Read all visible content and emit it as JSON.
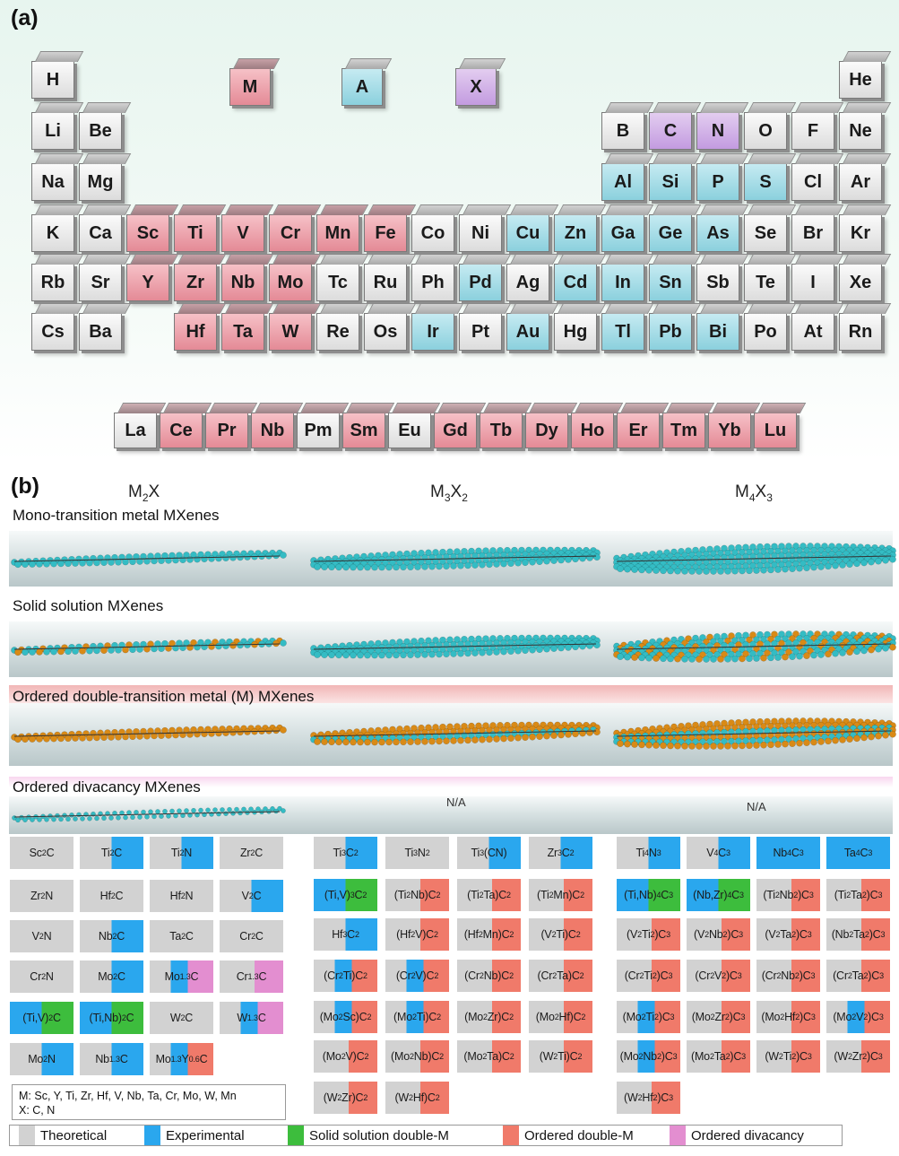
{
  "panel_a": {
    "label": "(a)",
    "legend_tiles": [
      {
        "symbol": "M",
        "role": "m"
      },
      {
        "symbol": "A",
        "role": "a"
      },
      {
        "symbol": "X",
        "role": "x"
      }
    ],
    "rows": [
      [
        {
          "s": "H",
          "r": "none"
        },
        {
          "s": "He",
          "r": "none"
        }
      ],
      [
        {
          "s": "Li",
          "r": "none"
        },
        {
          "s": "Be",
          "r": "none"
        },
        {
          "s": "B",
          "r": "none"
        },
        {
          "s": "C",
          "r": "x"
        },
        {
          "s": "N",
          "r": "x"
        },
        {
          "s": "O",
          "r": "none"
        },
        {
          "s": "F",
          "r": "none"
        },
        {
          "s": "Ne",
          "r": "none"
        }
      ],
      [
        {
          "s": "Na",
          "r": "none"
        },
        {
          "s": "Mg",
          "r": "none"
        },
        {
          "s": "Al",
          "r": "a"
        },
        {
          "s": "Si",
          "r": "a"
        },
        {
          "s": "P",
          "r": "a"
        },
        {
          "s": "S",
          "r": "a"
        },
        {
          "s": "Cl",
          "r": "none"
        },
        {
          "s": "Ar",
          "r": "none"
        }
      ],
      [
        {
          "s": "K",
          "r": "none"
        },
        {
          "s": "Ca",
          "r": "none"
        },
        {
          "s": "Sc",
          "r": "m"
        },
        {
          "s": "Ti",
          "r": "m"
        },
        {
          "s": "V",
          "r": "m"
        },
        {
          "s": "Cr",
          "r": "m"
        },
        {
          "s": "Mn",
          "r": "m"
        },
        {
          "s": "Fe",
          "r": "m"
        },
        {
          "s": "Co",
          "r": "none"
        },
        {
          "s": "Ni",
          "r": "none"
        },
        {
          "s": "Cu",
          "r": "a"
        },
        {
          "s": "Zn",
          "r": "a"
        },
        {
          "s": "Ga",
          "r": "a"
        },
        {
          "s": "Ge",
          "r": "a"
        },
        {
          "s": "As",
          "r": "a"
        },
        {
          "s": "Se",
          "r": "none"
        },
        {
          "s": "Br",
          "r": "none"
        },
        {
          "s": "Kr",
          "r": "none"
        }
      ],
      [
        {
          "s": "Rb",
          "r": "none"
        },
        {
          "s": "Sr",
          "r": "none"
        },
        {
          "s": "Y",
          "r": "m"
        },
        {
          "s": "Zr",
          "r": "m"
        },
        {
          "s": "Nb",
          "r": "m"
        },
        {
          "s": "Mo",
          "r": "m"
        },
        {
          "s": "Tc",
          "r": "none"
        },
        {
          "s": "Ru",
          "r": "none"
        },
        {
          "s": "Ph",
          "r": "none"
        },
        {
          "s": "Pd",
          "r": "a"
        },
        {
          "s": "Ag",
          "r": "none"
        },
        {
          "s": "Cd",
          "r": "a"
        },
        {
          "s": "In",
          "r": "a"
        },
        {
          "s": "Sn",
          "r": "a"
        },
        {
          "s": "Sb",
          "r": "none"
        },
        {
          "s": "Te",
          "r": "none"
        },
        {
          "s": "I",
          "r": "none"
        },
        {
          "s": "Xe",
          "r": "none"
        }
      ],
      [
        {
          "s": "Cs",
          "r": "none"
        },
        {
          "s": "Ba",
          "r": "none"
        },
        {
          "s": "Hf",
          "r": "m"
        },
        {
          "s": "Ta",
          "r": "m"
        },
        {
          "s": "W",
          "r": "m"
        },
        {
          "s": "Re",
          "r": "none"
        },
        {
          "s": "Os",
          "r": "none"
        },
        {
          "s": "Ir",
          "r": "a"
        },
        {
          "s": "Pt",
          "r": "none"
        },
        {
          "s": "Au",
          "r": "a"
        },
        {
          "s": "Hg",
          "r": "none"
        },
        {
          "s": "Tl",
          "r": "a"
        },
        {
          "s": "Pb",
          "r": "a"
        },
        {
          "s": "Bi",
          "r": "a"
        },
        {
          "s": "Po",
          "r": "none"
        },
        {
          "s": "At",
          "r": "none"
        },
        {
          "s": "Rn",
          "r": "none"
        }
      ]
    ],
    "lanthanides": [
      {
        "s": "La",
        "r": "none"
      },
      {
        "s": "Ce",
        "r": "m"
      },
      {
        "s": "Pr",
        "r": "m"
      },
      {
        "s": "Nb",
        "r": "m"
      },
      {
        "s": "Pm",
        "r": "none"
      },
      {
        "s": "Sm",
        "r": "m"
      },
      {
        "s": "Eu",
        "r": "none"
      },
      {
        "s": "Gd",
        "r": "m"
      },
      {
        "s": "Tb",
        "r": "m"
      },
      {
        "s": "Dy",
        "r": "m"
      },
      {
        "s": "Ho",
        "r": "m"
      },
      {
        "s": "Er",
        "r": "m"
      },
      {
        "s": "Tm",
        "r": "m"
      },
      {
        "s": "Yb",
        "r": "m"
      },
      {
        "s": "Lu",
        "r": "m"
      }
    ]
  },
  "panel_b": {
    "label": "(b)",
    "col_headers": [
      {
        "base": "M",
        "sub1": "2",
        "mid": "X",
        "sub2": ""
      },
      {
        "base": "M",
        "sub1": "3",
        "mid": "X",
        "sub2": "2"
      },
      {
        "base": "M",
        "sub1": "4",
        "mid": "X",
        "sub2": "3"
      }
    ],
    "row_titles": [
      "Mono-transition metal MXenes",
      "Solid solution MXenes",
      "Ordered double-transition metal (M) MXenes",
      "Ordered divacancy MXenes"
    ],
    "na_label": "N/A",
    "colors": {
      "theoretical": "#d2d2d2",
      "experimental": "#2aa7ee",
      "solid_solution": "#3dbd3d",
      "ordered_double": "#f07a6a",
      "ordered_divacancy": "#e38ed0",
      "teal_atom": "#34bcc4",
      "orange_atom": "#d98a16"
    },
    "tables": [
      [
        [
          {
            "f": "Sc_2C",
            "t": "none"
          },
          {
            "f": "Ti_2C",
            "t": "exp"
          },
          {
            "f": "Ti_2N",
            "t": "exp"
          },
          {
            "f": "Zr_2C",
            "t": "none"
          }
        ],
        [
          {
            "f": "Zr_2N",
            "t": "none"
          },
          {
            "f": "Hf_2C",
            "t": "none"
          },
          {
            "f": "Hf_2N",
            "t": "none"
          },
          {
            "f": "V_2C",
            "t": "exp"
          }
        ],
        [
          {
            "f": "V_2N",
            "t": "none"
          },
          {
            "f": "Nb_2C",
            "t": "exp"
          },
          {
            "f": "Ta_2C",
            "t": "none"
          },
          {
            "f": "Cr_2C",
            "t": "none"
          }
        ],
        [
          {
            "f": "Cr_2N",
            "t": "none"
          },
          {
            "f": "Mo_2C",
            "t": "exp"
          },
          {
            "f": "Mo_{1.3}C",
            "t": "exp_div"
          },
          {
            "f": "Cr_{1.3}C",
            "t": "div"
          }
        ],
        [
          {
            "f": "(Ti,V)_2C",
            "t": "exp_ss"
          },
          {
            "f": "(Ti,Nb)_2C",
            "t": "exp_ss"
          },
          {
            "f": "W_2C",
            "t": "none"
          },
          {
            "f": "W_{1.3}C",
            "t": "exp_div"
          }
        ],
        [
          {
            "f": "Mo_2N",
            "t": "exp"
          },
          {
            "f": "Nb_{1.3}C",
            "t": "exp"
          },
          {
            "f": "Mo_{1.3}Y_{0.6}C",
            "t": "exp_od"
          }
        ]
      ],
      [
        [
          {
            "f": "Ti_3C_2",
            "t": "exp"
          },
          {
            "f": "Ti_3N_2",
            "t": "none"
          },
          {
            "f": "Ti_3(CN)",
            "t": "exp"
          },
          {
            "f": "Zr_3C_2",
            "t": "exp"
          }
        ],
        [
          {
            "f": "(Ti,V)_3C_2",
            "t": "exp_ss"
          },
          {
            "f": "(Ti_2Nb)C_2",
            "t": "od"
          },
          {
            "f": "(Ti_2Ta)C_2",
            "t": "od"
          },
          {
            "f": "(Ti_2Mn)C_2",
            "t": "od"
          }
        ],
        [
          {
            "f": "Hf_3C_2",
            "t": "exp"
          },
          {
            "f": "(Hf_2V)C_2",
            "t": "od"
          },
          {
            "f": "(Hf_2Mn)C_2",
            "t": "od"
          },
          {
            "f": "(V_2Ti)C_2",
            "t": "od"
          }
        ],
        [
          {
            "f": "(Cr_2Ti)C_2",
            "t": "exp_od"
          },
          {
            "f": "(Cr_2V)C_2",
            "t": "exp_od"
          },
          {
            "f": "(Cr_2Nb)C_2",
            "t": "od"
          },
          {
            "f": "(Cr_2Ta)C_2",
            "t": "od"
          }
        ],
        [
          {
            "f": "(Mo_2Sc)C_2",
            "t": "exp_od"
          },
          {
            "f": "(Mo_2Ti)C_2",
            "t": "exp_od"
          },
          {
            "f": "(Mo_2Zr)C_2",
            "t": "od"
          },
          {
            "f": "(Mo_2Hf)C_2",
            "t": "od"
          }
        ],
        [
          {
            "f": "(Mo_2V)C_2",
            "t": "od"
          },
          {
            "f": "(Mo_2Nb)C_2",
            "t": "od"
          },
          {
            "f": "(Mo_2Ta)C_2",
            "t": "od"
          },
          {
            "f": "(W_2Ti)C_2",
            "t": "od"
          }
        ],
        [
          {
            "f": "(W_2Zr)C_2",
            "t": "od"
          },
          {
            "f": "(W_2Hf)C_2",
            "t": "od"
          }
        ]
      ],
      [
        [
          {
            "f": "Ti_4N_3",
            "t": "exp"
          },
          {
            "f": "V_4C_3",
            "t": "exp"
          },
          {
            "f": "Nb_4C_3",
            "t": "exp_full"
          },
          {
            "f": "Ta_4C_3",
            "t": "exp_full"
          }
        ],
        [
          {
            "f": "(Ti,Nb)_4C_3",
            "t": "exp_ss"
          },
          {
            "f": "(Nb,Zr)_4C_3",
            "t": "exp_ss"
          },
          {
            "f": "(Ti_2Nb_2)C_3",
            "t": "od"
          },
          {
            "f": "(Ti_2Ta_2)C_3",
            "t": "od"
          }
        ],
        [
          {
            "f": "(V_2Ti_2)C_3",
            "t": "od"
          },
          {
            "f": "(V_2Nb_2)C_3",
            "t": "od"
          },
          {
            "f": "(V_2Ta_2)C_3",
            "t": "od"
          },
          {
            "f": "(Nb_2Ta_2)C_3",
            "t": "od"
          }
        ],
        [
          {
            "f": "(Cr_2Ti_2)C_3",
            "t": "od"
          },
          {
            "f": "(Cr_2V_2)C_3",
            "t": "od"
          },
          {
            "f": "(Cr_2Nb_2)C_3",
            "t": "od"
          },
          {
            "f": "(Cr_2Ta_2)C_3",
            "t": "od"
          }
        ],
        [
          {
            "f": "(Mo_2Ti_2)C_3",
            "t": "exp_od"
          },
          {
            "f": "(Mo_2Zr_2)C_3",
            "t": "od"
          },
          {
            "f": "(Mo_2Hf_2)C_3",
            "t": "od"
          },
          {
            "f": "(Mo_2V_2)C_3",
            "t": "exp_od"
          }
        ],
        [
          {
            "f": "(Mo_2Nb_2)C_3",
            "t": "exp_od"
          },
          {
            "f": "(Mo_2Ta_2)C_3",
            "t": "od"
          },
          {
            "f": "(W_2Ti_2)C_3",
            "t": "od"
          },
          {
            "f": "(W_2Zr_2)C_3",
            "t": "od"
          }
        ],
        [
          {
            "f": "(W_2Hf_2)C_3",
            "t": "od"
          }
        ]
      ]
    ],
    "note_lines": [
      "M: Sc, Y, Ti, Zr, Hf, V, Nb, Ta, Cr, Mo, W, Mn",
      "X: C, N"
    ],
    "legend": [
      {
        "label": "Theoretical",
        "key": "theoretical"
      },
      {
        "label": "Experimental",
        "key": "experimental"
      },
      {
        "label": "Solid solution double-M",
        "key": "solid_solution"
      },
      {
        "label": "Ordered double-M",
        "key": "ordered_double"
      },
      {
        "label": "Ordered divacancy",
        "key": "ordered_divacancy"
      }
    ]
  }
}
